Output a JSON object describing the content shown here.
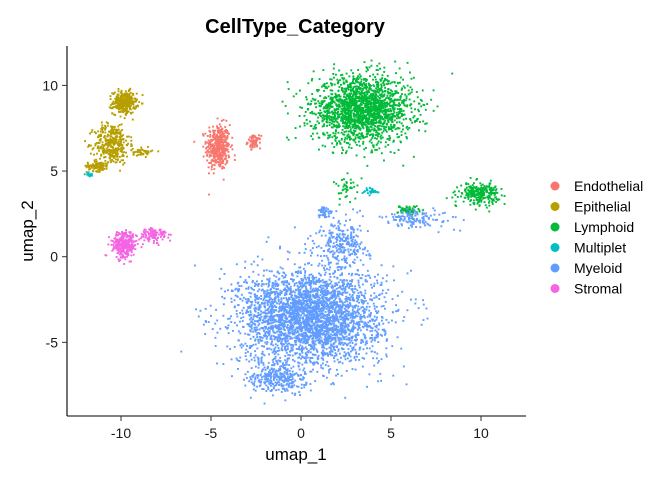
{
  "chart_data": {
    "type": "scatter",
    "title": "CellType_Category",
    "xlabel": "umap_1",
    "ylabel": "umap_2",
    "xlim": [
      -13,
      12.5
    ],
    "ylim": [
      -9.3,
      12.3
    ],
    "x_ticks": [
      -10,
      -5,
      0,
      5,
      10
    ],
    "y_ticks": [
      -5,
      0,
      5,
      10
    ],
    "x_tick_labels": [
      "-10",
      "-5",
      "0",
      "5",
      "10"
    ],
    "y_tick_labels": [
      "-5",
      "0",
      "5",
      "10"
    ],
    "grid": false,
    "legend_position": "right",
    "series": [
      {
        "name": "Endothelial",
        "color": "#F8766D",
        "clusters": [
          {
            "center": [
              -4.6,
              6.4
            ],
            "spread": [
              0.55,
              1.1
            ],
            "n": 420
          },
          {
            "center": [
              -2.6,
              6.7
            ],
            "spread": [
              0.3,
              0.3
            ],
            "n": 70
          }
        ]
      },
      {
        "name": "Epithelial",
        "color": "#B79F00",
        "clusters": [
          {
            "center": [
              -9.8,
              9.0
            ],
            "spread": [
              0.55,
              0.55
            ],
            "n": 300
          },
          {
            "center": [
              -10.5,
              6.6
            ],
            "spread": [
              0.8,
              1.0
            ],
            "n": 350
          },
          {
            "center": [
              -11.3,
              5.3
            ],
            "spread": [
              0.5,
              0.25
            ],
            "n": 100
          },
          {
            "center": [
              -8.8,
              6.1
            ],
            "spread": [
              0.45,
              0.2
            ],
            "n": 50
          }
        ]
      },
      {
        "name": "Lymphoid",
        "color": "#00BA38",
        "clusters": [
          {
            "center": [
              3.4,
              8.6
            ],
            "spread": [
              2.3,
              1.6
            ],
            "n": 1900
          },
          {
            "center": [
              9.9,
              3.7
            ],
            "spread": [
              0.9,
              0.5
            ],
            "n": 260
          },
          {
            "center": [
              6.0,
              2.7
            ],
            "spread": [
              0.5,
              0.25
            ],
            "n": 70
          },
          {
            "center": [
              2.6,
              4.0
            ],
            "spread": [
              0.6,
              0.6
            ],
            "n": 40
          }
        ]
      },
      {
        "name": "Multiplet",
        "color": "#00BFC4",
        "clusters": [
          {
            "center": [
              -11.8,
              4.8
            ],
            "spread": [
              0.15,
              0.1
            ],
            "n": 15
          },
          {
            "center": [
              3.9,
              3.8
            ],
            "spread": [
              0.4,
              0.2
            ],
            "n": 30
          }
        ]
      },
      {
        "name": "Myeloid",
        "color": "#619CFF",
        "clusters": [
          {
            "center": [
              0.5,
              -3.5
            ],
            "spread": [
              3.3,
              2.3
            ],
            "n": 3200
          },
          {
            "center": [
              -1.3,
              -7.0
            ],
            "spread": [
              1.3,
              0.8
            ],
            "n": 300
          },
          {
            "center": [
              2.3,
              0.8
            ],
            "spread": [
              1.2,
              1.2
            ],
            "n": 260
          },
          {
            "center": [
              6.5,
              2.2
            ],
            "spread": [
              1.6,
              0.45
            ],
            "n": 120
          },
          {
            "center": [
              1.3,
              2.6
            ],
            "spread": [
              0.4,
              0.25
            ],
            "n": 40
          }
        ]
      },
      {
        "name": "Stromal",
        "color": "#F564E3",
        "clusters": [
          {
            "center": [
              -9.8,
              0.7
            ],
            "spread": [
              0.55,
              0.65
            ],
            "n": 300
          },
          {
            "center": [
              -8.2,
              1.3
            ],
            "spread": [
              0.6,
              0.35
            ],
            "n": 110
          }
        ]
      }
    ]
  }
}
